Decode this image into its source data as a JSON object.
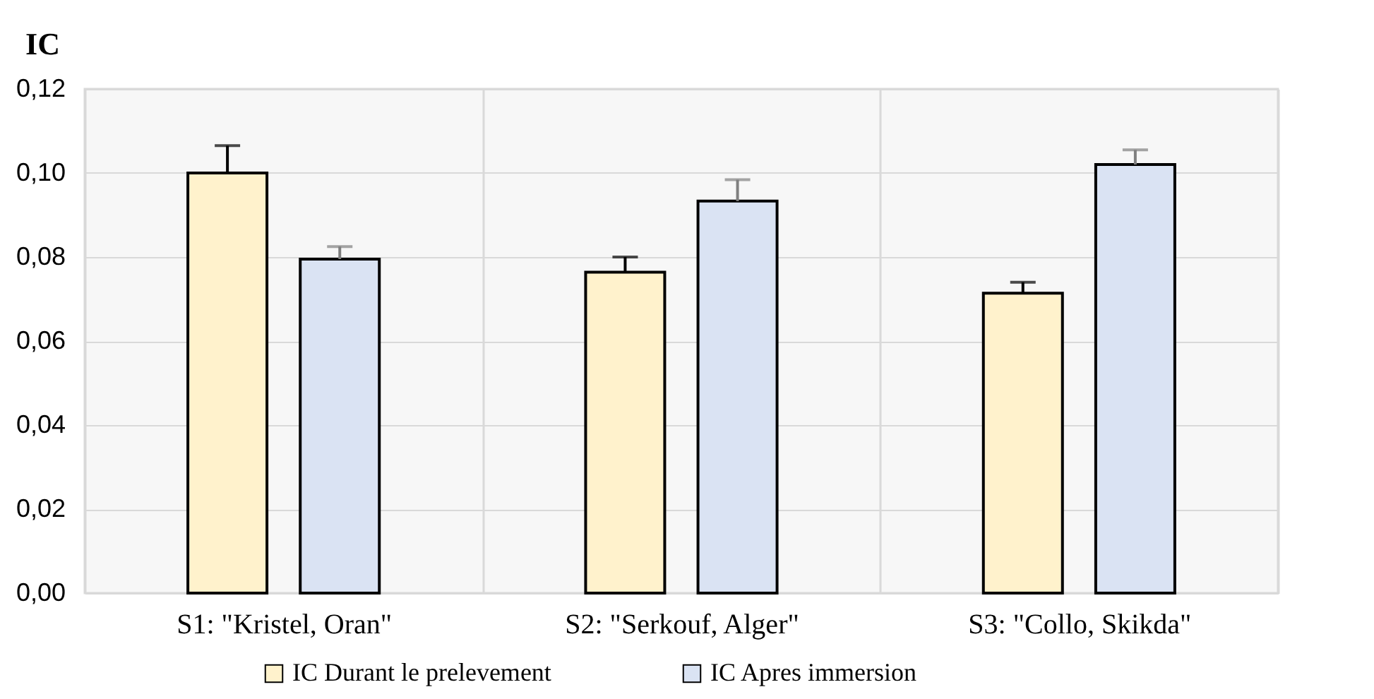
{
  "chart_data": {
    "type": "bar",
    "ylabel": "IC",
    "categories": [
      "S1: \"Kristel, Oran\"",
      "S2: \"Serkouf, Alger\"",
      "S3: \"Collo, Skikda\""
    ],
    "series": [
      {
        "name": "IC Durant le prelevement",
        "color": "#fff2cc",
        "values": [
          0.1,
          0.0764,
          0.0714
        ],
        "errors": [
          [
            0.1,
            0.1065
          ],
          [
            0.0764,
            0.08
          ],
          [
            0.0714,
            0.074
          ]
        ]
      },
      {
        "name": "IC Apres immersion",
        "color": "#dae3f3",
        "values": [
          0.0795,
          0.0933,
          0.102
        ],
        "errors": [
          [
            0.0795,
            0.0825
          ],
          [
            0.0933,
            0.0984
          ],
          [
            0.102,
            0.1055
          ]
        ]
      }
    ],
    "ylim": [
      0,
      0.12
    ],
    "yticks": [
      {
        "value": 0,
        "label": "0,00"
      },
      {
        "value": 0.02,
        "label": "0,02"
      },
      {
        "value": 0.04,
        "label": "0,04"
      },
      {
        "value": 0.06,
        "label": "0,06"
      },
      {
        "value": 0.08,
        "label": "0,08"
      },
      {
        "value": 0.1,
        "label": "0,10"
      },
      {
        "value": 0.12,
        "label": "0,12"
      }
    ],
    "grid": true,
    "legend": "bottom"
  }
}
